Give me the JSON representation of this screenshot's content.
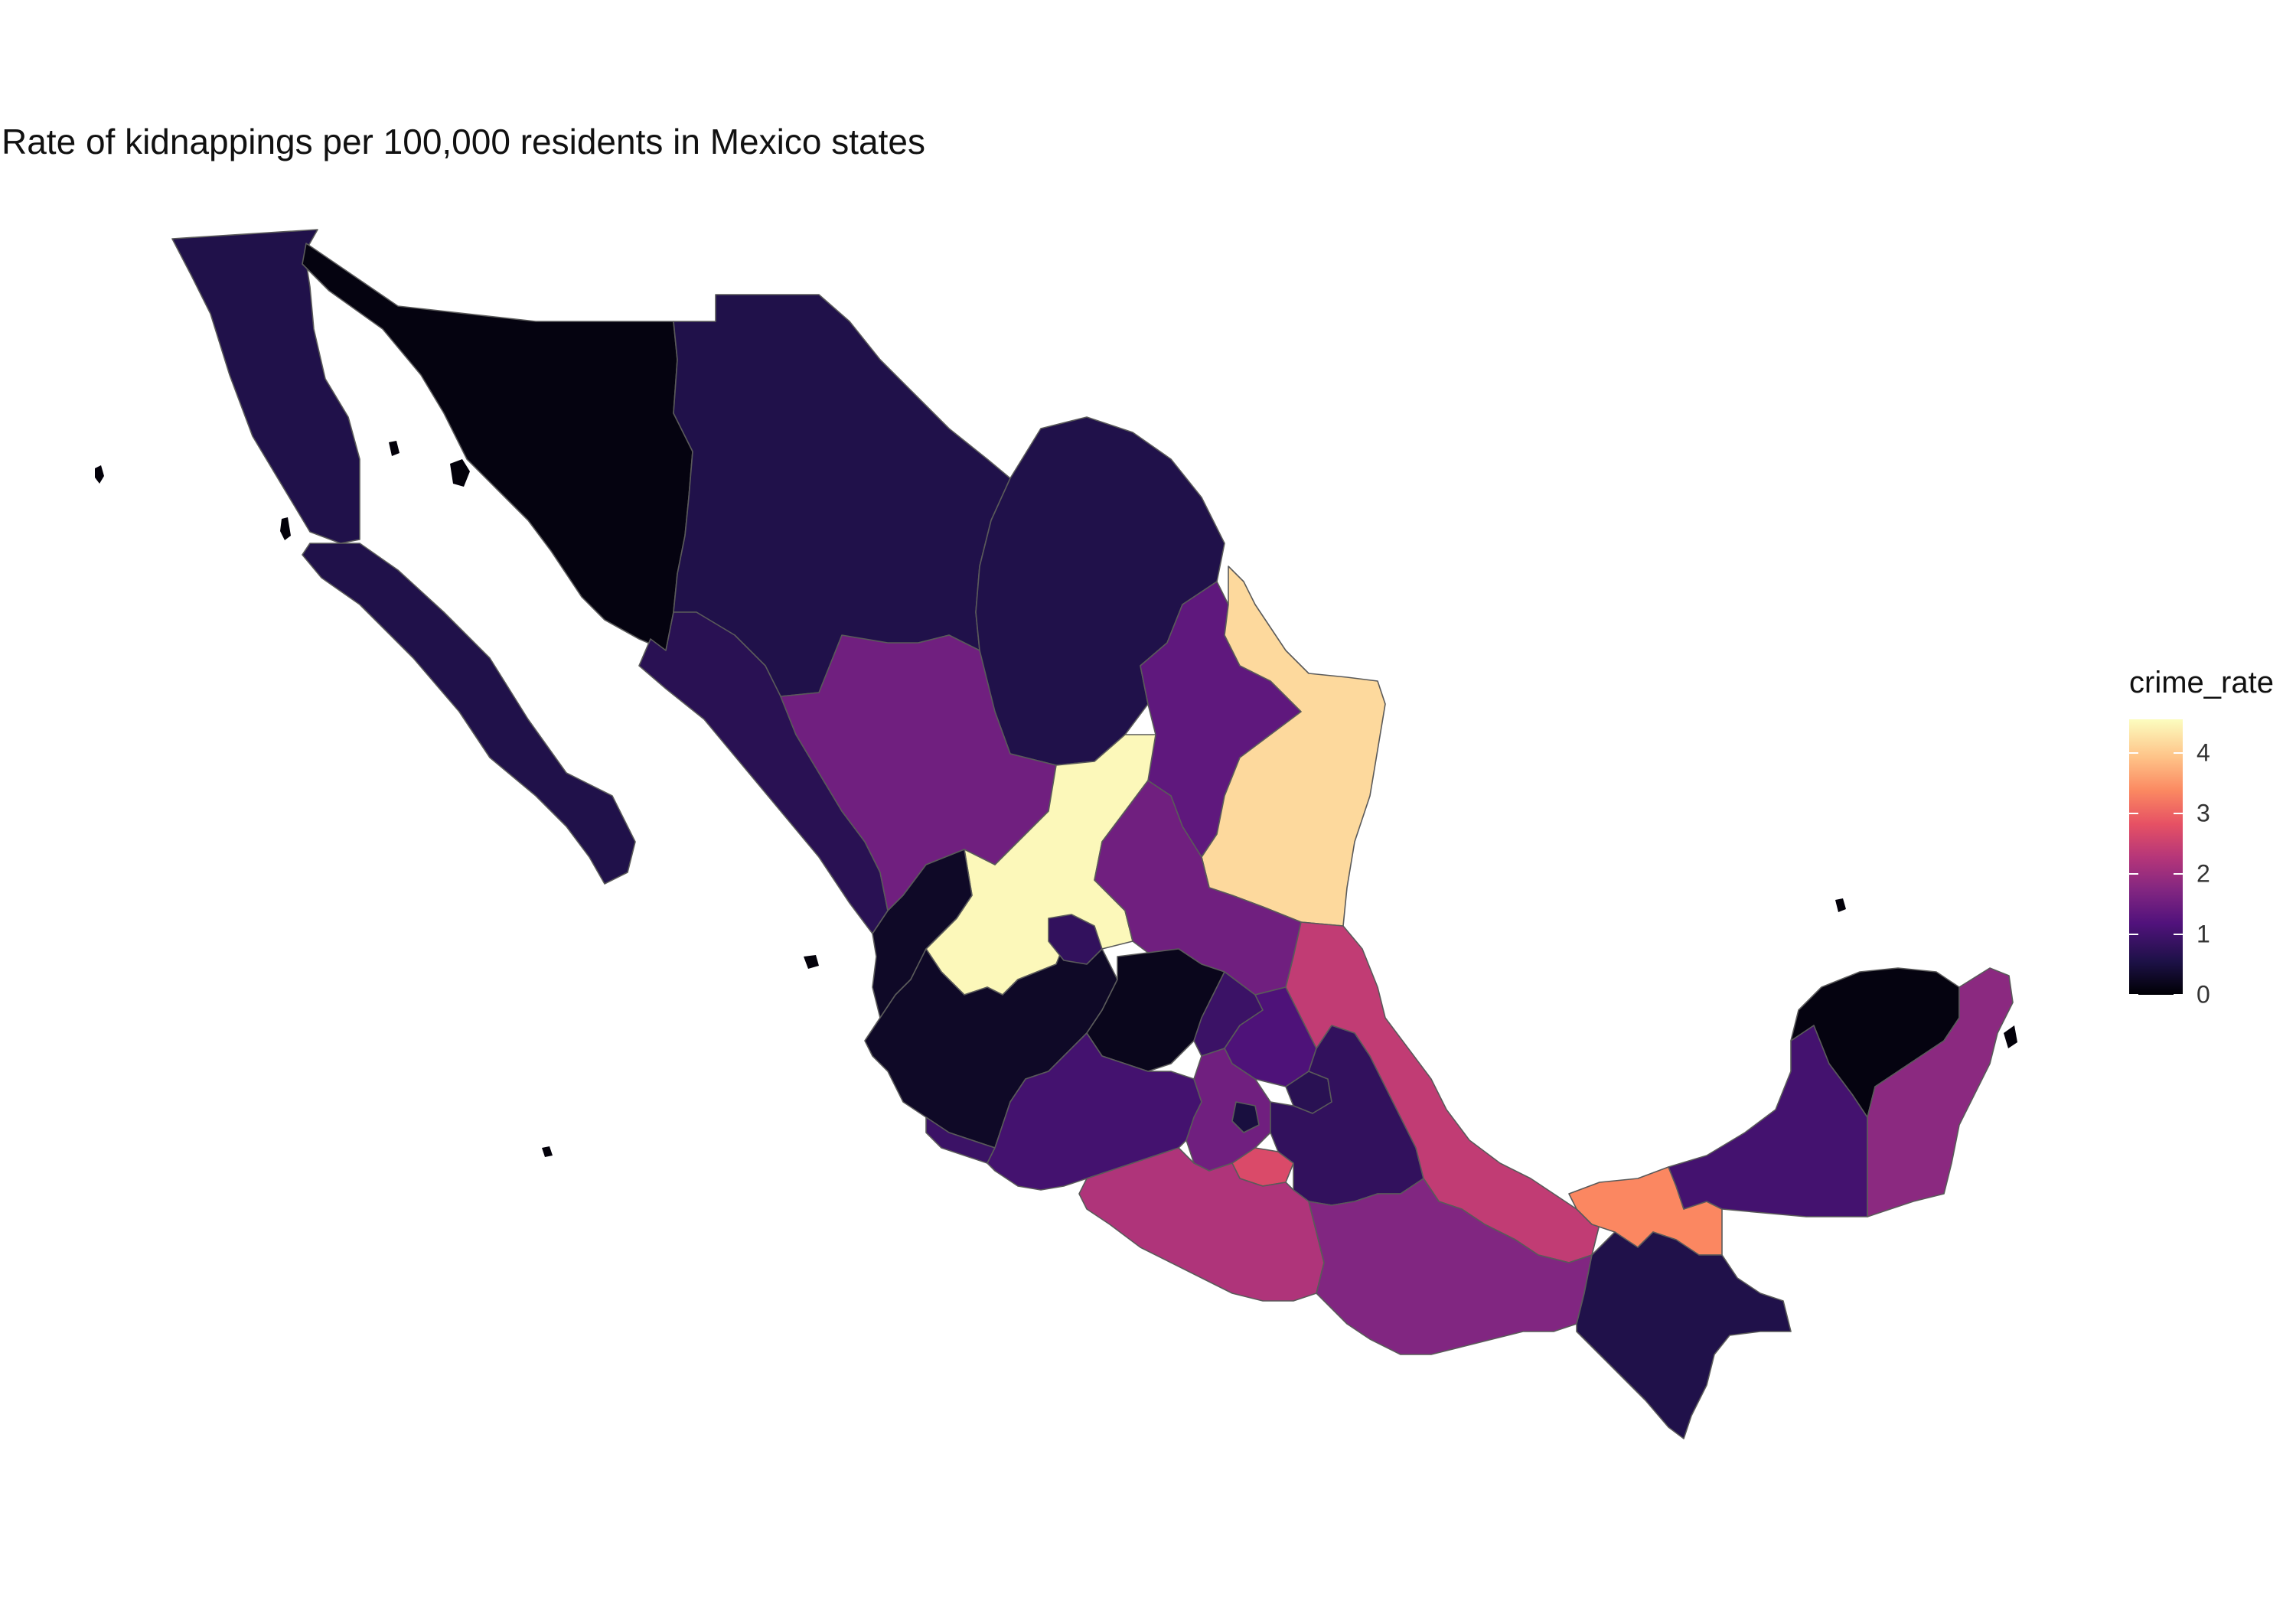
{
  "title": "Rate of kidnappings per 100,000 residents in Mexico states",
  "legend": {
    "title": "crime_rate",
    "min": 0,
    "max": 4.55,
    "ticks": [
      {
        "value": 0,
        "label": "0"
      },
      {
        "value": 1,
        "label": "1"
      },
      {
        "value": 2,
        "label": "2"
      },
      {
        "value": 3,
        "label": "3"
      },
      {
        "value": 4,
        "label": "4"
      }
    ],
    "palette": "magma",
    "colors": [
      "#000004",
      "#1d1147",
      "#51127c",
      "#822681",
      "#b63679",
      "#e65164",
      "#fb8861",
      "#fec287",
      "#fcfdbf"
    ]
  },
  "chart_data": {
    "type": "choropleth",
    "variable": "crime_rate",
    "approximate_values_by_region": {
      "Baja California": 0.6,
      "Baja California Sur": 0.6,
      "Sonora": 0.1,
      "Chihuahua": 0.6,
      "Coahuila": 0.6,
      "Nuevo Leon": 1.3,
      "Tamaulipas": 4.2,
      "Sinaloa": 0.7,
      "Durango": 1.5,
      "Zacatecas": 4.5,
      "San Luis Potosi": 1.5,
      "Nayarit": 0.3,
      "Jalisco": 0.3,
      "Aguascalientes": 0.8,
      "Guanajuato": 0.2,
      "Queretaro": 0.9,
      "Hidalgo": 1.1,
      "Colima": 0.9,
      "Michoacan": 1.0,
      "Mexico": 1.5,
      "Ciudad de Mexico": 0.5,
      "Morelos": 2.7,
      "Tlaxcala": 0.7,
      "Puebla": 0.8,
      "Veracruz": 2.4,
      "Guerrero": 2.2,
      "Oaxaca": 1.7,
      "Tabasco": 3.4,
      "Chiapas": 0.6,
      "Campeche": 1.0,
      "Yucatan": 0.1,
      "Quintana Roo": 1.8
    }
  }
}
